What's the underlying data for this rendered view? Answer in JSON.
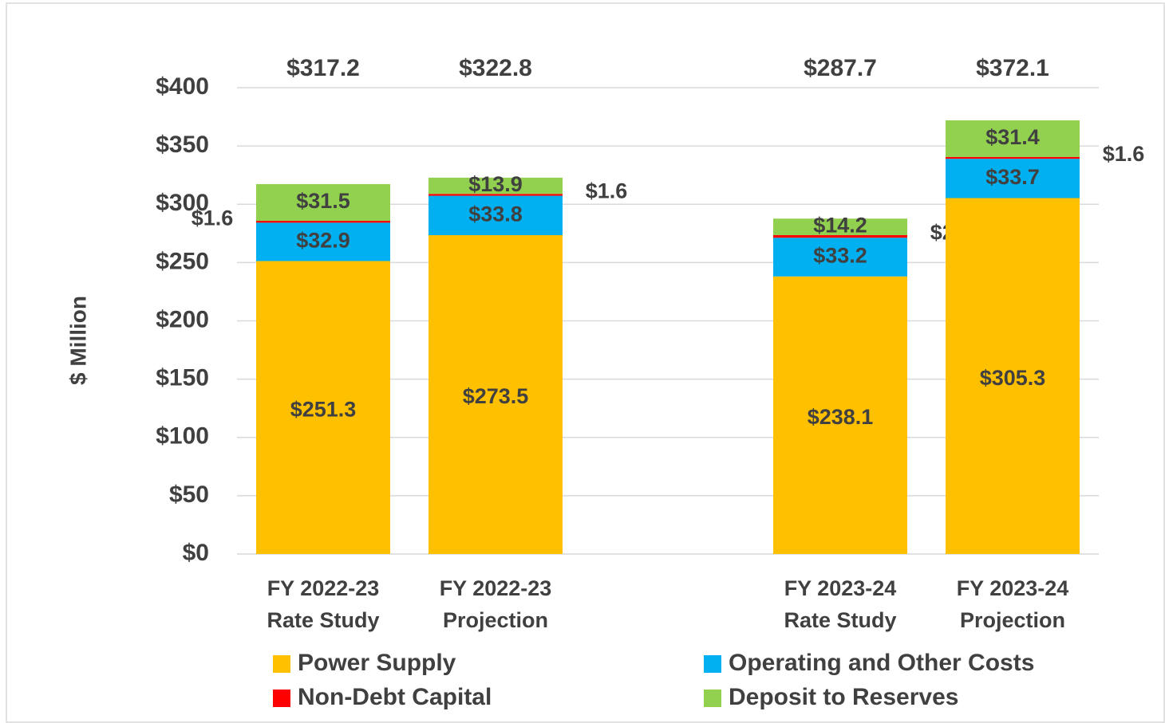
{
  "chart_data": {
    "type": "stacked_bar",
    "y_label": "$ Million",
    "categories": [
      "FY 2022-23\nRate Study",
      "FY 2022-23\nProjection",
      null,
      "FY 2023-24\nRate Study",
      "FY 2023-24\nProjection"
    ],
    "series": [
      {
        "name": "Power Supply",
        "color": "#ffc000",
        "values": [
          251.3,
          273.5,
          null,
          238.1,
          305.3
        ],
        "value_labels": [
          "$251.3",
          "$273.5",
          null,
          "$238.1",
          "$305.3"
        ]
      },
      {
        "name": "Operating and Other Costs",
        "color": "#00b0f0",
        "values": [
          32.9,
          33.8,
          null,
          33.2,
          33.7
        ],
        "value_labels": [
          "$32.9",
          "$33.8",
          null,
          "$33.2",
          "$33.7"
        ]
      },
      {
        "name": "Non-Debt Capital",
        "color": "#ff0000",
        "values": [
          1.6,
          1.6,
          null,
          2.2,
          1.6
        ],
        "value_labels": [
          "$1.6",
          "$1.6",
          null,
          "$2.2",
          "$1.6"
        ]
      },
      {
        "name": "Deposit to Reserves",
        "color": "#92d050",
        "values": [
          31.5,
          13.9,
          null,
          14.2,
          31.4
        ],
        "value_labels": [
          "$31.5",
          "$13.9",
          null,
          "$14.2",
          "$31.4"
        ]
      }
    ],
    "totals": [
      317.2,
      322.8,
      null,
      287.7,
      372.1
    ],
    "total_labels": [
      "$317.2",
      "$322.8",
      null,
      "$287.7",
      "$372.1"
    ],
    "ylim": [
      0,
      400
    ],
    "yticks": [
      {
        "value": 0,
        "label": "$0"
      },
      {
        "value": 50,
        "label": "$50"
      },
      {
        "value": 100,
        "label": "$100"
      },
      {
        "value": 150,
        "label": "$150"
      },
      {
        "value": 200,
        "label": "$200"
      },
      {
        "value": 250,
        "label": "$250"
      },
      {
        "value": 300,
        "label": "$300"
      },
      {
        "value": 350,
        "label": "$350"
      },
      {
        "value": 400,
        "label": "$400"
      }
    ],
    "grid": true
  }
}
